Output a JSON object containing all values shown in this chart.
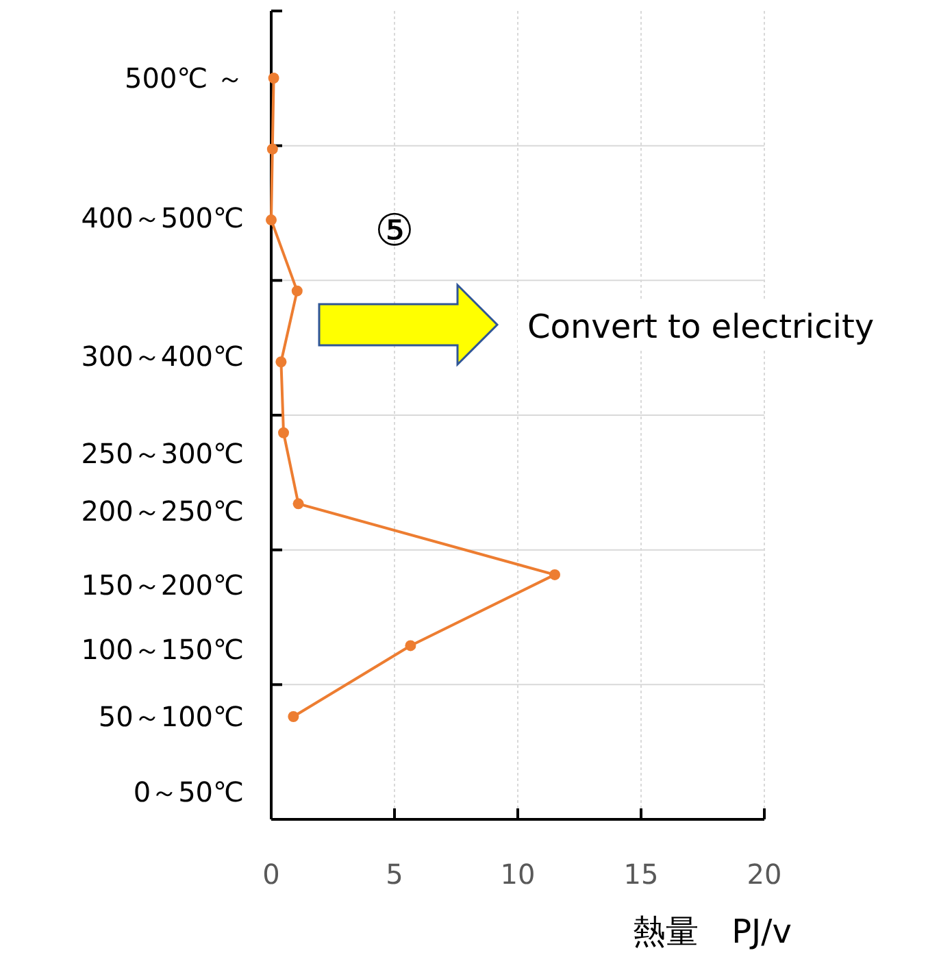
{
  "chart_data": {
    "type": "line",
    "orientation": "horizontal",
    "xlabel": "熱量　PJ/v",
    "categories": [
      null,
      null,
      null,
      null,
      null,
      null,
      null,
      null,
      null,
      null
    ],
    "series": [
      {
        "color": "#ed7d31",
        "values": [
          0.1,
          0.05,
          0,
          1.05,
          0.4,
          0.5,
          1.1,
          11.5,
          5.65,
          0.9
        ]
      }
    ],
    "xlim": [
      0,
      20
    ],
    "xticks": [
      0,
      5,
      10,
      15,
      20
    ],
    "grid": true,
    "marker": "circle",
    "line_style": "solid",
    "annotations": [
      "⑤",
      "Convert to electricity",
      "500℃ ～",
      "400～500℃",
      "300～400℃",
      "250～300℃",
      "200～250℃",
      "150～200℃",
      "100～150℃",
      "50～100℃",
      "0～50℃"
    ]
  }
}
